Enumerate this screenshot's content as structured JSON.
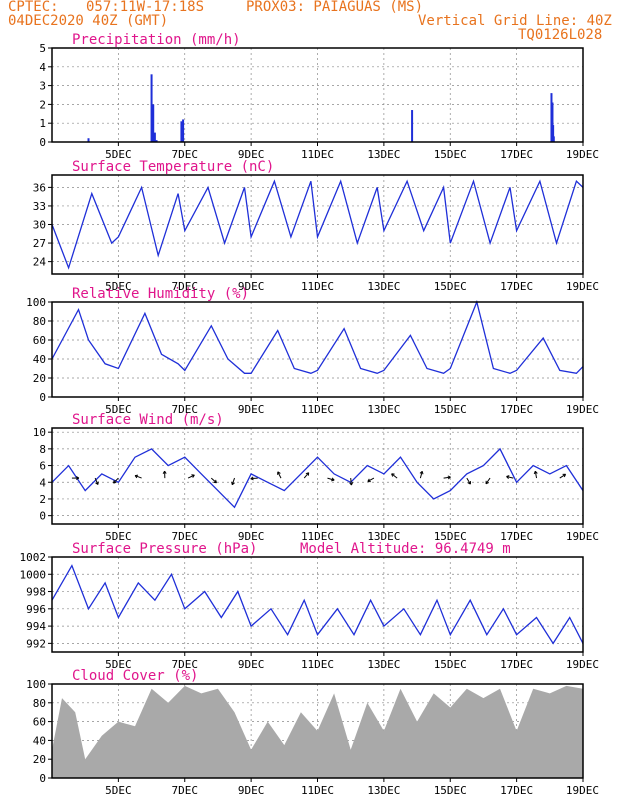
{
  "header": {
    "source": "CPTEC:",
    "coords": "057:11W-17:18S",
    "station": "PROX03: PAIAGUAS (MS)",
    "run": "04DEC2020 40Z (GMT)",
    "grid_note": "Vertical Grid Line: 40Z",
    "code": "TQ0126L028"
  },
  "colors": {
    "header": "#e8731e",
    "title": "#e0168c",
    "series": "#1f2fd8",
    "cloud": "#a9a9a9",
    "arrow": "#000000"
  },
  "chart_data": [
    {
      "id": "precip",
      "type": "bar",
      "title": "Precipitation (mm/h)",
      "ylim": [
        0,
        5
      ],
      "yticks": [
        0,
        1,
        2,
        3,
        4,
        5
      ],
      "x_ticks": [
        "5DEC",
        "7DEC",
        "9DEC",
        "11DEC",
        "13DEC",
        "15DEC",
        "17DEC",
        "19DEC"
      ],
      "grid": true,
      "x": [
        4.1,
        6.0,
        6.05,
        6.1,
        6.15,
        6.9,
        6.95,
        13.85,
        18.05,
        18.08,
        18.1,
        18.12
      ],
      "values": [
        0.2,
        3.6,
        2.0,
        0.5,
        0.1,
        1.1,
        1.2,
        1.7,
        2.6,
        2.1,
        0.9,
        0.3
      ]
    },
    {
      "id": "temp",
      "type": "line",
      "title": "Surface Temperature (nC)",
      "ylim": [
        22,
        38
      ],
      "yticks": [
        24,
        27,
        30,
        33,
        36
      ],
      "x_ticks": [
        "5DEC",
        "7DEC",
        "9DEC",
        "11DEC",
        "13DEC",
        "15DEC",
        "17DEC",
        "19DEC"
      ],
      "grid": true,
      "x": [
        3.0,
        3.5,
        4.2,
        4.8,
        5.0,
        5.7,
        6.2,
        6.8,
        7.0,
        7.7,
        8.2,
        8.8,
        9.0,
        9.7,
        10.2,
        10.8,
        11.0,
        11.7,
        12.2,
        12.8,
        13.0,
        13.7,
        14.2,
        14.8,
        15.0,
        15.7,
        16.2,
        16.8,
        17.0,
        17.7,
        18.2,
        18.8,
        19.0
      ],
      "y": [
        30,
        23,
        35,
        27,
        28,
        36,
        25,
        35,
        29,
        36,
        27,
        36,
        28,
        37,
        28,
        37,
        28,
        37,
        27,
        36,
        29,
        37,
        29,
        36,
        27,
        37,
        27,
        36,
        29,
        37,
        27,
        37,
        36
      ]
    },
    {
      "id": "rh",
      "type": "line",
      "title": "Relative Humidity (%)",
      "ylim": [
        0,
        100
      ],
      "yticks": [
        0,
        20,
        40,
        60,
        80,
        100
      ],
      "x_ticks": [
        "5DEC",
        "7DEC",
        "9DEC",
        "11DEC",
        "13DEC",
        "15DEC",
        "17DEC",
        "19DEC"
      ],
      "grid": true,
      "x": [
        3.0,
        3.8,
        4.1,
        4.6,
        5.0,
        5.8,
        6.3,
        6.8,
        7.0,
        7.8,
        8.3,
        8.8,
        9.0,
        9.8,
        10.3,
        10.8,
        11.0,
        11.8,
        12.3,
        12.8,
        13.0,
        13.8,
        14.3,
        14.8,
        15.0,
        15.8,
        16.3,
        16.8,
        17.0,
        17.8,
        18.3,
        18.8,
        19.0
      ],
      "y": [
        40,
        92,
        60,
        35,
        30,
        88,
        45,
        35,
        28,
        75,
        40,
        25,
        25,
        70,
        30,
        25,
        28,
        72,
        30,
        25,
        28,
        65,
        30,
        25,
        30,
        100,
        30,
        25,
        28,
        62,
        28,
        25,
        32
      ]
    },
    {
      "id": "wind",
      "type": "line",
      "title": "Surface Wind (m/s)",
      "ylim": [
        -1,
        10.5
      ],
      "yticks": [
        0,
        2,
        4,
        6,
        8,
        10
      ],
      "x_ticks": [
        "5DEC",
        "7DEC",
        "9DEC",
        "11DEC",
        "13DEC",
        "15DEC",
        "17DEC",
        "19DEC"
      ],
      "grid": true,
      "x": [
        3.0,
        3.5,
        4.0,
        4.5,
        5.0,
        5.5,
        6.0,
        6.5,
        7.0,
        7.5,
        8.0,
        8.5,
        9.0,
        9.5,
        10.0,
        10.5,
        11.0,
        11.5,
        12.0,
        12.5,
        13.0,
        13.5,
        14.0,
        14.5,
        15.0,
        15.5,
        16.0,
        16.5,
        17.0,
        17.5,
        18.0,
        18.5,
        19.0
      ],
      "y": [
        4,
        6,
        3,
        5,
        4,
        7,
        8,
        6,
        7,
        5,
        3,
        1,
        5,
        4,
        3,
        5,
        7,
        5,
        4,
        6,
        5,
        7,
        4,
        2,
        3,
        5,
        6,
        8,
        4,
        6,
        5,
        6,
        3
      ]
    },
    {
      "id": "pres",
      "type": "line",
      "title": "Surface Pressure (hPa)",
      "annotation": "Model Altitude: 96.4749 m",
      "ylim": [
        991,
        1002
      ],
      "yticks": [
        992,
        994,
        996,
        998,
        1000,
        1002
      ],
      "x_ticks": [
        "5DEC",
        "7DEC",
        "9DEC",
        "11DEC",
        "13DEC",
        "15DEC",
        "17DEC",
        "19DEC"
      ],
      "grid": true,
      "x": [
        3.0,
        3.6,
        4.1,
        4.6,
        5.0,
        5.6,
        6.1,
        6.6,
        7.0,
        7.6,
        8.1,
        8.6,
        9.0,
        9.6,
        10.1,
        10.6,
        11.0,
        11.6,
        12.1,
        12.6,
        13.0,
        13.6,
        14.1,
        14.6,
        15.0,
        15.6,
        16.1,
        16.6,
        17.0,
        17.6,
        18.1,
        18.6,
        19.0
      ],
      "y": [
        997,
        1001,
        996,
        999,
        995,
        999,
        997,
        1000,
        996,
        998,
        995,
        998,
        994,
        996,
        993,
        997,
        993,
        996,
        993,
        997,
        994,
        996,
        993,
        997,
        993,
        997,
        993,
        996,
        993,
        995,
        992,
        995,
        992
      ]
    },
    {
      "id": "cloud",
      "type": "area",
      "title": "Cloud Cover (%)",
      "ylim": [
        0,
        100
      ],
      "yticks": [
        0,
        20,
        40,
        60,
        80,
        100
      ],
      "x_ticks": [
        "5DEC",
        "7DEC",
        "9DEC",
        "11DEC",
        "13DEC",
        "15DEC",
        "17DEC",
        "19DEC"
      ],
      "grid": true,
      "x": [
        3.0,
        3.3,
        3.7,
        4.0,
        4.5,
        5.0,
        5.5,
        6.0,
        6.5,
        7.0,
        7.5,
        8.0,
        8.5,
        9.0,
        9.5,
        10.0,
        10.5,
        11.0,
        11.5,
        12.0,
        12.5,
        13.0,
        13.5,
        14.0,
        14.5,
        15.0,
        15.5,
        16.0,
        16.5,
        17.0,
        17.5,
        18.0,
        18.5,
        19.0
      ],
      "y": [
        30,
        85,
        70,
        20,
        45,
        60,
        55,
        95,
        80,
        98,
        90,
        95,
        70,
        30,
        60,
        35,
        70,
        50,
        90,
        30,
        80,
        50,
        95,
        60,
        90,
        75,
        95,
        85,
        95,
        50,
        95,
        90,
        98,
        95
      ]
    }
  ]
}
